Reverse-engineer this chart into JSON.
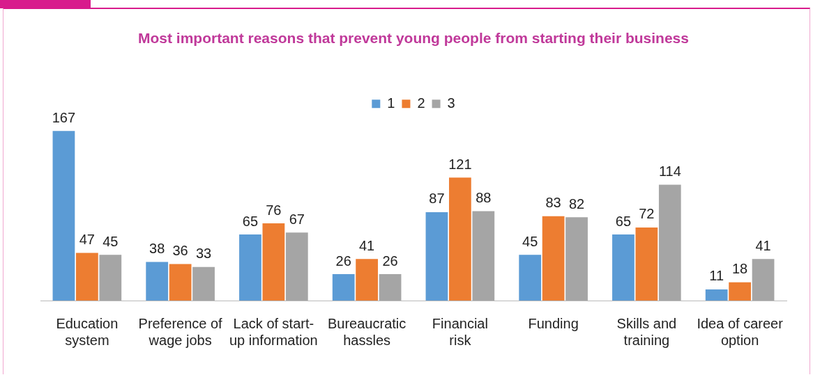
{
  "chart_data": {
    "type": "bar",
    "title": "Most important reasons that prevent young people from starting their business",
    "categories": [
      "Education\nsystem",
      "Preference of\nwage jobs",
      "Lack of start-\nup information",
      "Bureaucratic\nhassles",
      "Financial\nrisk",
      "Funding",
      "Skills and\ntraining",
      "Idea of career\noption"
    ],
    "series": [
      {
        "name": "1",
        "color": "#5b9bd5",
        "values": [
          167,
          38,
          65,
          26,
          87,
          45,
          65,
          11
        ]
      },
      {
        "name": "2",
        "color": "#ed7d31",
        "values": [
          47,
          36,
          76,
          41,
          121,
          83,
          72,
          18
        ]
      },
      {
        "name": "3",
        "color": "#a5a5a5",
        "values": [
          45,
          33,
          67,
          26,
          88,
          82,
          114,
          41
        ]
      }
    ],
    "data_labels": true,
    "legend": "top",
    "grid": false
  }
}
